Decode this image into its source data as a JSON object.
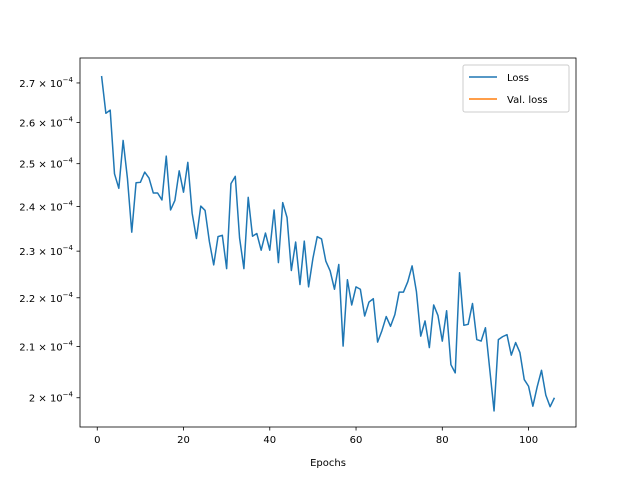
{
  "chart_data": {
    "type": "line",
    "title": "",
    "xlabel": "Epochs",
    "ylabel": "",
    "yscale": "log",
    "xlim": [
      -4,
      111
    ],
    "ylim": [
      0.0001945,
      0.0002765
    ],
    "grid": false,
    "legend_position": "top-right",
    "x_ticks": [
      0,
      20,
      40,
      60,
      80,
      100
    ],
    "x_tick_labels": [
      "0",
      "20",
      "40",
      "60",
      "80",
      "100"
    ],
    "y_ticks": [
      0.0002,
      0.00021,
      0.00022,
      0.00023,
      0.00024,
      0.00025,
      0.00026,
      0.00027
    ],
    "y_tick_labels": [
      {
        "mantissa": "2",
        "exp": "−4"
      },
      {
        "mantissa": "2.1",
        "exp": "−4"
      },
      {
        "mantissa": "2.2",
        "exp": "−4"
      },
      {
        "mantissa": "2.3",
        "exp": "−4"
      },
      {
        "mantissa": "2.4",
        "exp": "−4"
      },
      {
        "mantissa": "2.5",
        "exp": "−4"
      },
      {
        "mantissa": "2.6",
        "exp": "−4"
      },
      {
        "mantissa": "2.7",
        "exp": "−4"
      }
    ],
    "series": [
      {
        "name": "Loss",
        "color": "#1f77b4",
        "x": [
          1,
          2,
          3,
          4,
          5,
          6,
          7,
          8,
          9,
          10,
          11,
          12,
          13,
          14,
          15,
          16,
          17,
          18,
          19,
          20,
          21,
          22,
          23,
          24,
          25,
          26,
          27,
          28,
          29,
          30,
          31,
          32,
          33,
          34,
          35,
          36,
          37,
          38,
          39,
          40,
          41,
          42,
          43,
          44,
          45,
          46,
          47,
          48,
          49,
          50,
          51,
          52,
          53,
          54,
          55,
          56,
          57,
          58,
          59,
          60,
          61,
          62,
          63,
          64,
          65,
          66,
          67,
          68,
          69,
          70,
          71,
          72,
          73,
          74,
          75,
          76,
          77,
          78,
          79,
          80,
          81,
          82,
          83,
          84,
          85,
          86,
          87,
          88,
          89,
          90,
          91,
          92,
          93,
          94,
          95,
          96,
          97,
          98,
          99,
          100,
          101,
          102,
          103,
          104,
          105,
          106
        ],
        "y": [
          0.0002718,
          0.0002623,
          0.0002631,
          0.0002476,
          0.0002442,
          0.0002556,
          0.0002465,
          0.0002342,
          0.0002455,
          0.0002456,
          0.000248,
          0.0002466,
          0.0002431,
          0.0002431,
          0.0002415,
          0.0002518,
          0.0002392,
          0.0002414,
          0.0002483,
          0.0002433,
          0.0002503,
          0.0002385,
          0.0002328,
          0.0002401,
          0.0002391,
          0.0002321,
          0.000227,
          0.0002332,
          0.0002335,
          0.0002262,
          0.0002453,
          0.000247,
          0.0002329,
          0.0002262,
          0.0002421,
          0.0002333,
          0.0002339,
          0.0002302,
          0.000234,
          0.0002302,
          0.0002392,
          0.0002275,
          0.0002409,
          0.0002375,
          0.0002258,
          0.000232,
          0.0002228,
          0.0002322,
          0.0002223,
          0.0002284,
          0.0002332,
          0.0002327,
          0.0002278,
          0.0002257,
          0.0002218,
          0.0002271,
          0.0002101,
          0.0002238,
          0.0002185,
          0.0002223,
          0.0002218,
          0.0002162,
          0.0002191,
          0.0002198,
          0.0002109,
          0.0002132,
          0.0002161,
          0.0002141,
          0.0002165,
          0.0002212,
          0.0002212,
          0.0002234,
          0.0002268,
          0.0002213,
          0.0002121,
          0.0002152,
          0.0002098,
          0.0002185,
          0.0002163,
          0.0002111,
          0.0002173,
          0.0002064,
          0.0002048,
          0.0002253,
          0.0002143,
          0.0002145,
          0.0002188,
          0.0002114,
          0.0002111,
          0.0002138,
          0.0002055,
          0.0001975,
          0.0002114,
          0.000212,
          0.0002124,
          0.0002083,
          0.0002108,
          0.0002088,
          0.0002035,
          0.0002022,
          0.0001984,
          0.0002021,
          0.0002053,
          0.0002005,
          0.0001983,
          0.0002
        ]
      },
      {
        "name": "Val. loss",
        "color": "#ff7f0e",
        "x": [],
        "y": []
      }
    ]
  }
}
